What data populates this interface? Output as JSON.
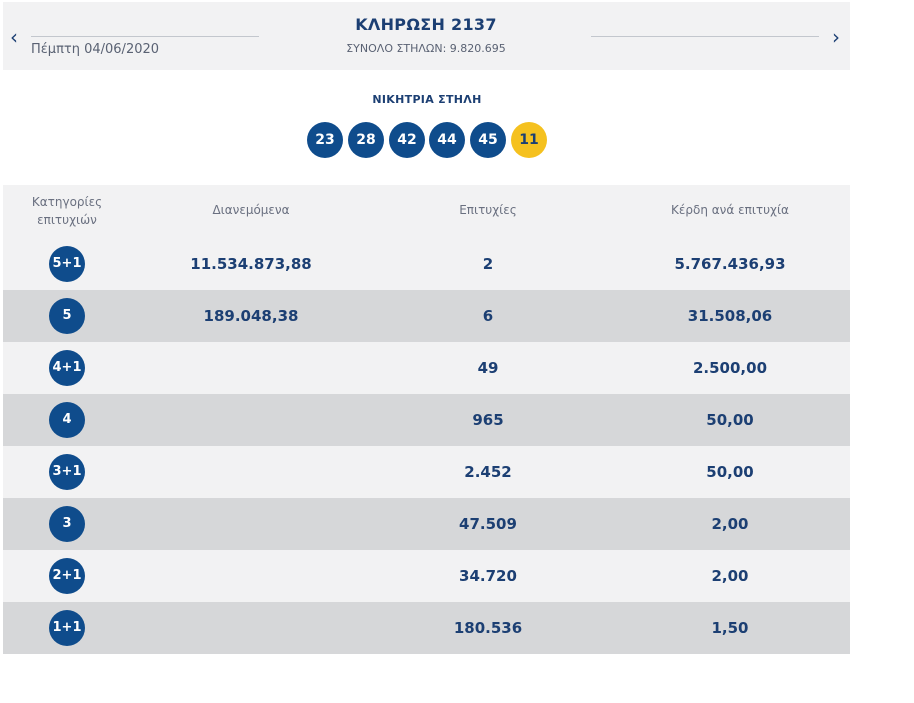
{
  "header": {
    "prev_icon": "chevron-left-icon",
    "next_icon": "chevron-right-icon",
    "prev_glyph": "‹",
    "next_glyph": "›",
    "date": "Πέμπτη 04/06/2020",
    "title": "ΚΛΗΡΩΣΗ 2137",
    "total_columns": "ΣΥΝΟΛΟ ΣΤΗΛΩΝ: 9.820.695"
  },
  "winning": {
    "title": "ΝΙΚΗΤΡΙΑ ΣΤΗΛΗ",
    "numbers": [
      "23",
      "28",
      "42",
      "44",
      "45"
    ],
    "bonus": "11"
  },
  "table": {
    "headers": {
      "category_line1": "Κατηγορίες",
      "category_line2": "επιτυχιών",
      "distributed": "Διανεμόμενα",
      "winners": "Επιτυχίες",
      "prize": "Κέρδη ανά επιτυχία"
    },
    "rows": [
      {
        "category": "5+1",
        "distributed": "11.534.873,88",
        "winners": "2",
        "prize": "5.767.436,93"
      },
      {
        "category": "5",
        "distributed": "189.048,38",
        "winners": "6",
        "prize": "31.508,06"
      },
      {
        "category": "4+1",
        "distributed": "",
        "winners": "49",
        "prize": "2.500,00"
      },
      {
        "category": "4",
        "distributed": "",
        "winners": "965",
        "prize": "50,00"
      },
      {
        "category": "3+1",
        "distributed": "",
        "winners": "2.452",
        "prize": "50,00"
      },
      {
        "category": "3",
        "distributed": "",
        "winners": "47.509",
        "prize": "2,00"
      },
      {
        "category": "2+1",
        "distributed": "",
        "winners": "34.720",
        "prize": "2,00"
      },
      {
        "category": "1+1",
        "distributed": "",
        "winners": "180.536",
        "prize": "1,50"
      }
    ]
  },
  "colors": {
    "primary": "#0f4c8c",
    "bonus": "#f5c11f",
    "text": "#1c3f73",
    "row_light": "#f2f2f3",
    "row_dark": "#d6d7d9"
  }
}
